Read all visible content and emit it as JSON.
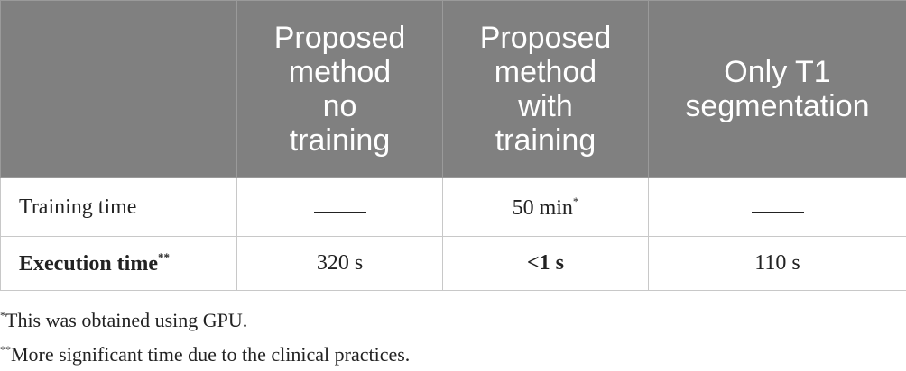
{
  "table": {
    "columns": [
      {
        "lines": [
          "Proposed",
          "method",
          "no",
          "training"
        ]
      },
      {
        "lines": [
          "Proposed",
          "method",
          "with",
          "training"
        ]
      },
      {
        "lines": [
          "Only T1",
          "segmentation"
        ]
      }
    ],
    "rows": [
      {
        "label": "Training time",
        "cells": [
          null,
          {
            "text": "50 min",
            "note": "*"
          },
          null
        ]
      },
      {
        "label": "Execution time",
        "label_note": "**",
        "cells": [
          {
            "text": "320 s"
          },
          {
            "text": "<1 s"
          },
          {
            "text": "110 s"
          }
        ]
      }
    ]
  },
  "footnotes": [
    {
      "mark": "*",
      "text": "This was obtained using GPU."
    },
    {
      "mark": "**",
      "text": "More significant time due to the clinical practices."
    }
  ]
}
